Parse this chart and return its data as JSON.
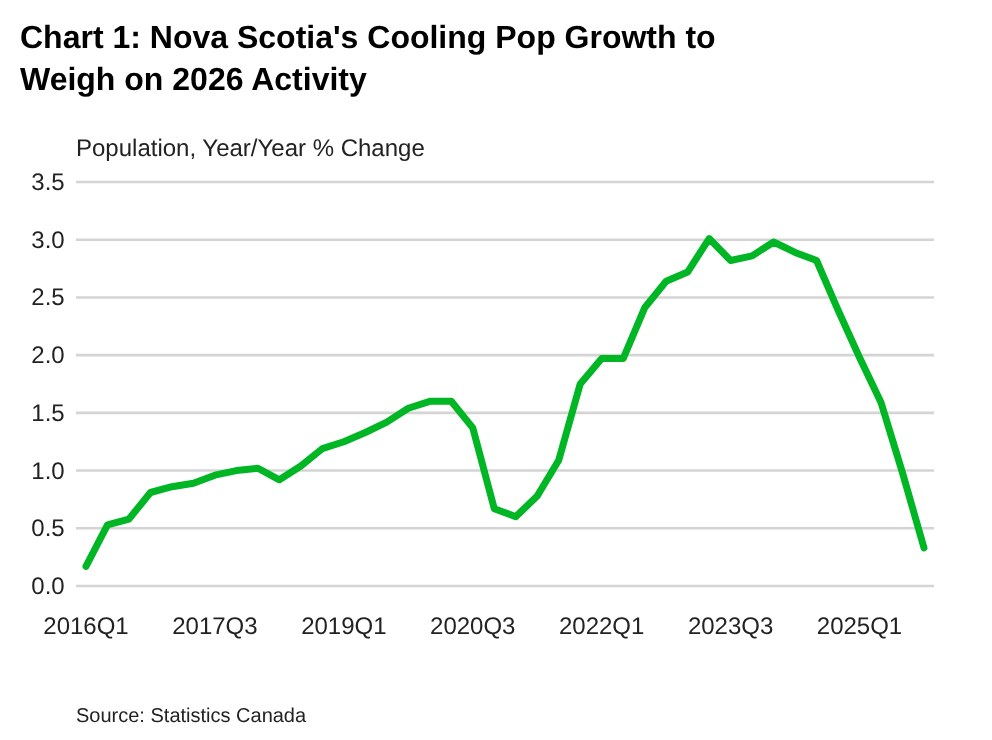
{
  "chart_data": {
    "type": "line",
    "title": "Chart 1: Nova Scotia's Cooling Pop Growth to\nWeigh on 2026 Activity",
    "ylabel": "Population, Year/Year % Change",
    "annotations": [
      "Source: Statistics Canada"
    ],
    "categories": [
      "2016Q1",
      null,
      null,
      null,
      null,
      null,
      "2017Q3",
      null,
      null,
      null,
      null,
      null,
      "2019Q1",
      null,
      null,
      null,
      null,
      null,
      "2020Q3",
      null,
      null,
      null,
      null,
      null,
      "2022Q1",
      null,
      null,
      null,
      null,
      null,
      "2023Q3",
      null,
      null,
      null,
      null,
      null,
      "2025Q1",
      null,
      null,
      null
    ],
    "series": [
      {
        "color": "#00b624",
        "values": [
          0.17,
          0.53,
          0.58,
          0.81,
          0.86,
          0.89,
          0.96,
          1.0,
          1.02,
          0.92,
          1.04,
          1.19,
          1.25,
          1.33,
          1.42,
          1.54,
          1.6,
          1.6,
          1.37,
          0.67,
          0.6,
          0.78,
          1.09,
          1.75,
          1.97,
          1.97,
          2.41,
          2.64,
          2.72,
          3.01,
          2.82,
          2.86,
          2.98,
          2.89,
          2.82,
          2.39,
          1.98,
          1.59,
          0.98,
          0.33
        ]
      }
    ],
    "ylim": [
      0,
      3.5
    ],
    "yticks": [
      {
        "value": 0,
        "label": "0.0"
      },
      {
        "value": 0.5,
        "label": "0.5"
      },
      {
        "value": 1,
        "label": "1.0"
      },
      {
        "value": 1.5,
        "label": "1.5"
      },
      {
        "value": 2,
        "label": "2.0"
      },
      {
        "value": 2.5,
        "label": "2.5"
      },
      {
        "value": 3,
        "label": "3.0"
      },
      {
        "value": 3.5,
        "label": "3.5"
      }
    ],
    "grid": "y",
    "marker": "none",
    "line_style": "solid"
  }
}
